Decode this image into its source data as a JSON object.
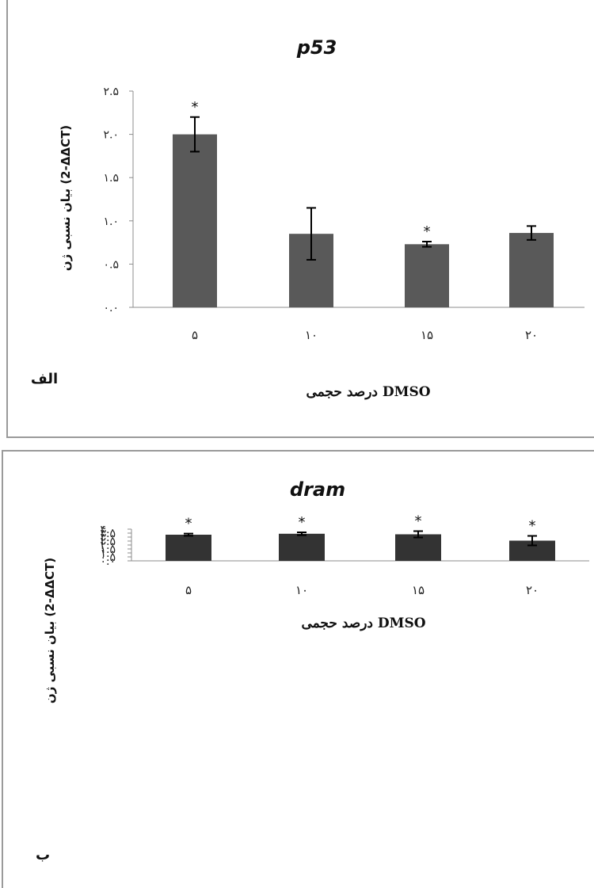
{
  "chart_data": [
    {
      "type": "bar",
      "panel_label": "الف",
      "title": "p53",
      "xlabel": "درصد حجمی DMSO",
      "ylabel": "بیان نسبی ژن (2-ΔΔCT)",
      "ylim": [
        0,
        2.5
      ],
      "ytick_values": [
        0,
        0.5,
        1.0,
        1.5,
        2.0,
        2.5
      ],
      "ytick_labels": [
        "۰.۰",
        "۰.۵",
        "۱.۰",
        "۱.۵",
        "۲.۰",
        "۲.۵"
      ],
      "categories": [
        "۵",
        "۱۰",
        "۱۵",
        "۲۰"
      ],
      "values": [
        2.0,
        0.85,
        0.73,
        0.86
      ],
      "errors": [
        0.2,
        0.3,
        0.03,
        0.08
      ],
      "significance": [
        "*",
        "",
        "*",
        ""
      ],
      "bar_color": "#595959",
      "grid": false
    },
    {
      "type": "bar",
      "panel_label": "ب",
      "title": "dram",
      "xlabel": "درصد حجمی DMSO",
      "ylabel": "بیان نسبی ژن (2-ΔΔCT)",
      "ylim": [
        0,
        4.0
      ],
      "ytick_values": [
        0,
        0.5,
        1.0,
        1.5,
        2.0,
        2.5,
        3.0,
        3.5,
        4.0
      ],
      "ytick_labels": [
        "۰.۰",
        "۰.۵",
        "۱.۰",
        "۱.۵",
        "۲.۰",
        "۲.۵",
        "۳.۰",
        "۳.۵",
        "۴.۰"
      ],
      "categories": [
        "۵",
        "۱۰",
        "۱۵",
        "۲۰"
      ],
      "values": [
        3.3,
        3.42,
        3.35,
        2.55
      ],
      "errors": [
        0.14,
        0.18,
        0.4,
        0.6
      ],
      "significance": [
        "*",
        "*",
        "*",
        "*"
      ],
      "bar_color": "#333333",
      "grid": false
    }
  ]
}
